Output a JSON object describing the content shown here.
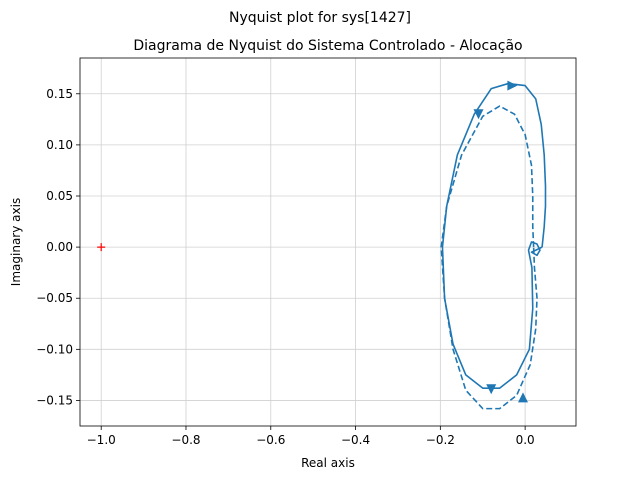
{
  "chart_data": {
    "type": "line",
    "suptitle": "Nyquist plot for sys[1427]",
    "title": "Diagrama de Nyquist do Sistema Controlado - Alocação",
    "xlabel": "Real axis",
    "ylabel": "Imaginary axis",
    "xlim": [
      -1.05,
      0.12
    ],
    "ylim": [
      -0.175,
      0.185
    ],
    "xticks": [
      -1.0,
      -0.8,
      -0.6,
      -0.4,
      -0.2,
      0.0
    ],
    "xtick_labels": [
      "−1.0",
      "−0.8",
      "−0.6",
      "−0.4",
      "−0.2",
      "0.0"
    ],
    "yticks": [
      -0.15,
      -0.1,
      -0.05,
      0.0,
      0.05,
      0.1,
      0.15
    ],
    "ytick_labels": [
      "−0.15",
      "−0.10",
      "−0.05",
      "0.00",
      "0.05",
      "0.10",
      "0.15"
    ],
    "grid": true,
    "critical_point": {
      "x": -1.0,
      "y": 0.0,
      "marker": "+",
      "color": "#ff0000"
    },
    "line_color": "#1f77b4",
    "series": [
      {
        "style": "solid",
        "points": [
          [
            0.04,
            0.0
          ],
          [
            0.045,
            0.02
          ],
          [
            0.048,
            0.04
          ],
          [
            0.048,
            0.06
          ],
          [
            0.045,
            0.09
          ],
          [
            0.038,
            0.12
          ],
          [
            0.025,
            0.145
          ],
          [
            0.0,
            0.158
          ],
          [
            -0.04,
            0.16
          ],
          [
            -0.08,
            0.155
          ],
          [
            -0.12,
            0.13
          ],
          [
            -0.16,
            0.09
          ],
          [
            -0.185,
            0.04
          ],
          [
            -0.195,
            0.0
          ],
          [
            -0.19,
            -0.05
          ],
          [
            -0.17,
            -0.095
          ],
          [
            -0.14,
            -0.125
          ],
          [
            -0.1,
            -0.138
          ],
          [
            -0.06,
            -0.138
          ],
          [
            -0.02,
            -0.125
          ],
          [
            0.01,
            -0.1
          ],
          [
            0.018,
            -0.06
          ],
          [
            0.016,
            -0.02
          ],
          [
            0.008,
            -0.003
          ],
          [
            0.015,
            0.005
          ],
          [
            0.028,
            0.003
          ],
          [
            0.035,
            -0.003
          ],
          [
            0.028,
            -0.008
          ],
          [
            0.015,
            -0.005
          ],
          [
            0.04,
            0.0
          ]
        ],
        "arrows": [
          {
            "x": -0.03,
            "y": 0.158,
            "dir": "right"
          },
          {
            "x": -0.08,
            "y": -0.139,
            "dir": "down"
          }
        ]
      },
      {
        "style": "dashed",
        "points": [
          [
            0.02,
            0.0
          ],
          [
            0.018,
            0.02
          ],
          [
            0.018,
            0.05
          ],
          [
            0.015,
            0.08
          ],
          [
            0.0,
            0.11
          ],
          [
            -0.025,
            0.13
          ],
          [
            -0.06,
            0.138
          ],
          [
            -0.1,
            0.128
          ],
          [
            -0.15,
            0.09
          ],
          [
            -0.185,
            0.04
          ],
          [
            -0.198,
            0.0
          ],
          [
            -0.19,
            -0.05
          ],
          [
            -0.17,
            -0.1
          ],
          [
            -0.14,
            -0.14
          ],
          [
            -0.1,
            -0.158
          ],
          [
            -0.06,
            -0.158
          ],
          [
            -0.02,
            -0.145
          ],
          [
            0.012,
            -0.115
          ],
          [
            0.025,
            -0.08
          ],
          [
            0.028,
            -0.05
          ],
          [
            0.022,
            -0.02
          ],
          [
            0.02,
            0.0
          ]
        ],
        "arrows": [
          {
            "x": -0.11,
            "y": 0.13,
            "dir": "down"
          },
          {
            "x": -0.005,
            "y": -0.147,
            "dir": "up"
          }
        ]
      }
    ]
  }
}
